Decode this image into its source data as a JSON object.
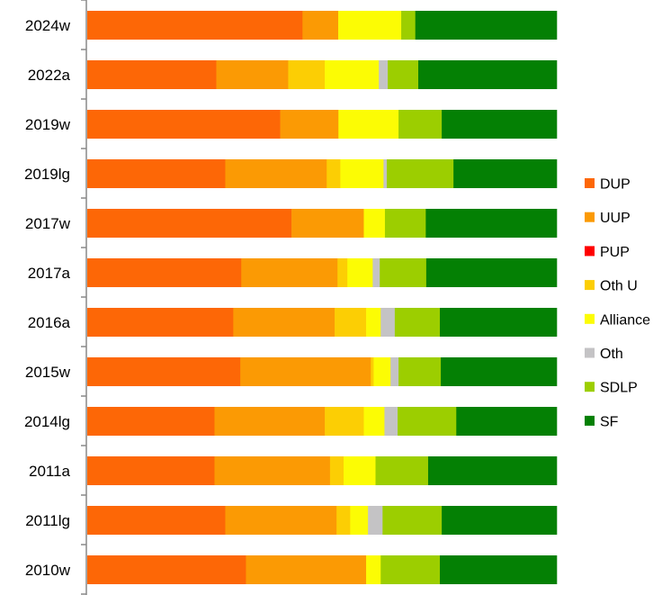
{
  "chart_data": {
    "type": "bar",
    "orientation": "horizontal",
    "stacked": "percent",
    "categories": [
      "2024w",
      "2022a",
      "2019w",
      "2019lg",
      "2017w",
      "2017a",
      "2016a",
      "2015w",
      "2014lg",
      "2011a",
      "2011lg",
      "2010w"
    ],
    "series": [
      {
        "name": "DUP",
        "color": "#fd6706",
        "values": [
          45.8,
          27.5,
          41.1,
          29.4,
          43.5,
          32.8,
          31.1,
          32.6,
          27.1,
          27.1,
          29.4,
          33.8
        ]
      },
      {
        "name": "UUP",
        "color": "#fb9a04",
        "values": [
          7.6,
          15.3,
          12.4,
          21.6,
          15.4,
          20.5,
          21.6,
          27.8,
          23.5,
          24.6,
          23.7,
          25.6
        ]
      },
      {
        "name": "PUP",
        "color": "#ff0000",
        "values": [
          0,
          0,
          0,
          0,
          0,
          0,
          0,
          0,
          0,
          0,
          0,
          0
        ]
      },
      {
        "name": "Oth U",
        "color": "#fcce04",
        "values": [
          0,
          7.8,
          0,
          2.9,
          0,
          2.1,
          6.7,
          0.6,
          8.3,
          2.9,
          2.9,
          0
        ]
      },
      {
        "name": "Alliance",
        "color": "#fcfc04",
        "values": [
          13.4,
          11.5,
          12.8,
          9.2,
          4.5,
          5.4,
          3.1,
          3.6,
          4.4,
          6.8,
          3.8,
          3.1
        ]
      },
      {
        "name": "Oth",
        "color": "#c4c3c5",
        "values": [
          0,
          1.9,
          0,
          0.7,
          0,
          1.5,
          3.0,
          1.7,
          2.8,
          0,
          3.1,
          0
        ]
      },
      {
        "name": "SDLP",
        "color": "#9cce00",
        "values": [
          3.0,
          6.5,
          9.2,
          14.2,
          8.7,
          9.9,
          9.6,
          9.0,
          12.5,
          11.2,
          12.6,
          12.6
        ]
      },
      {
        "name": "SF",
        "color": "#048004",
        "values": [
          30.1,
          29.5,
          24.5,
          22.0,
          27.9,
          27.8,
          24.9,
          24.7,
          21.4,
          27.4,
          24.5,
          24.9
        ]
      }
    ],
    "xlim": [
      0,
      100
    ],
    "grid": false,
    "legend": "right",
    "title": "",
    "xlabel": "",
    "ylabel": ""
  }
}
